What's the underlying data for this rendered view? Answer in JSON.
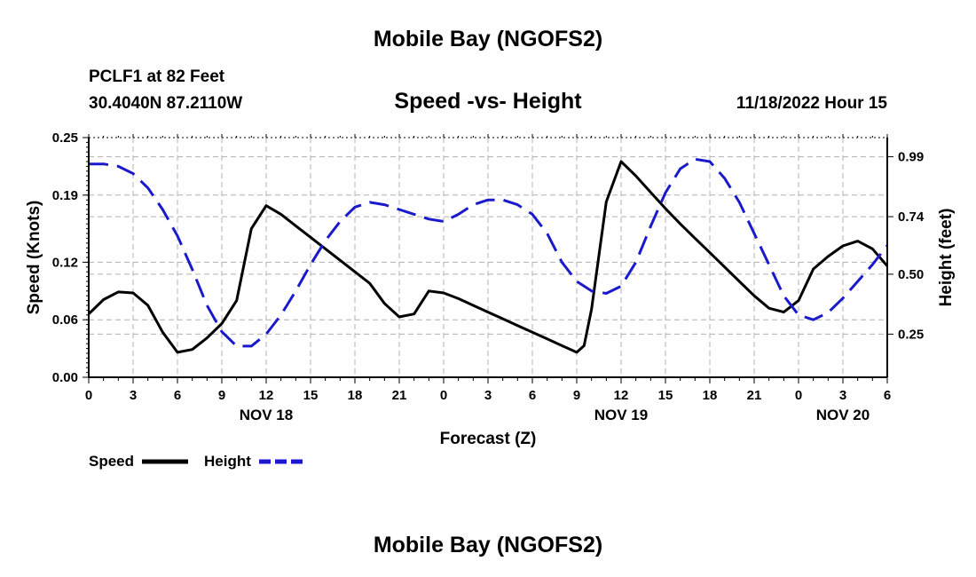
{
  "header": {
    "title": "Mobile Bay (NGOFS2)",
    "station": "PCLF1 at 82 Feet",
    "coordinates": "30.4040N  87.2110W",
    "subtitle": "Speed -vs- Height",
    "datetime": "11/18/2022 Hour 15"
  },
  "footer": {
    "title": "Mobile Bay (NGOFS2)"
  },
  "legend": {
    "speed_label": "Speed",
    "height_label": "Height"
  },
  "colors": {
    "speed": "#000000",
    "height": "#1a1acc",
    "grid": "#b0b0b0"
  },
  "chart_data": {
    "type": "line",
    "title": "Speed -vs- Height",
    "xlabel": "Forecast (Z)",
    "ylabel": "Speed (Knots)",
    "y2label": "Height (feet)",
    "grid": true,
    "legend_position": "bottom-left",
    "ylim": [
      0,
      0.25
    ],
    "y2lim": [
      0.07,
      1.07
    ],
    "x_unit": "hours",
    "xlim": [
      0,
      54
    ],
    "x_ticks": [
      0,
      3,
      6,
      9,
      12,
      15,
      18,
      21,
      24,
      27,
      30,
      33,
      36,
      39,
      42,
      45,
      48,
      51,
      54
    ],
    "x_tick_labels": [
      "0",
      "3",
      "6",
      "9",
      "12",
      "15",
      "18",
      "21",
      "0",
      "3",
      "6",
      "9",
      "12",
      "15",
      "18",
      "21",
      "0",
      "3",
      "6"
    ],
    "day_labels": [
      {
        "x": 12,
        "label": "NOV 18"
      },
      {
        "x": 36,
        "label": "NOV 19"
      },
      {
        "x": 51,
        "label": "NOV 20"
      }
    ],
    "y_ticks": [
      0,
      0.06,
      0.12,
      0.19,
      0.25
    ],
    "y_tick_labels": [
      "0.00",
      "0.06",
      "0.12",
      "0.19",
      "0.25"
    ],
    "y2_ticks": [
      0.25,
      0.5,
      0.74,
      0.99
    ],
    "y2_tick_labels": [
      "0.25",
      "0.50",
      "0.74",
      "0.99"
    ],
    "series": [
      {
        "name": "Speed",
        "axis": "left",
        "style": "solid",
        "x": [
          0,
          1,
          2,
          3,
          4,
          5,
          6,
          7,
          8,
          9,
          10,
          11,
          12,
          13,
          14,
          15,
          16,
          17,
          18,
          19,
          20,
          21,
          22,
          23,
          24,
          25,
          26,
          27,
          28,
          29,
          30,
          31,
          32,
          33,
          33.5,
          34,
          35,
          36,
          37,
          38,
          39,
          40,
          41,
          42,
          43,
          44,
          45,
          46,
          47,
          48,
          49,
          50,
          51,
          52,
          53,
          54
        ],
        "values": [
          0.066,
          0.081,
          0.089,
          0.088,
          0.075,
          0.047,
          0.026,
          0.029,
          0.041,
          0.056,
          0.08,
          0.155,
          0.179,
          0.17,
          0.158,
          0.146,
          0.134,
          0.122,
          0.11,
          0.098,
          0.077,
          0.063,
          0.066,
          0.09,
          0.088,
          0.082,
          0.075,
          0.068,
          0.061,
          0.054,
          0.047,
          0.04,
          0.033,
          0.026,
          0.033,
          0.071,
          0.183,
          0.225,
          0.21,
          0.193,
          0.176,
          0.16,
          0.145,
          0.13,
          0.115,
          0.1,
          0.085,
          0.072,
          0.068,
          0.08,
          0.113,
          0.126,
          0.137,
          0.142,
          0.134,
          0.116
        ]
      },
      {
        "name": "Height",
        "axis": "right",
        "style": "dashed",
        "x": [
          0,
          1,
          2,
          3,
          4,
          5,
          6,
          7,
          8,
          9,
          10,
          11,
          12,
          13,
          14,
          15,
          16,
          17,
          18,
          19,
          20,
          21,
          22,
          23,
          24,
          25,
          26,
          27,
          28,
          29,
          30,
          31,
          32,
          33,
          34,
          35,
          36,
          37,
          38,
          39,
          40,
          41,
          42,
          43,
          44,
          45,
          46,
          47,
          48,
          49,
          50,
          51,
          52,
          53,
          54
        ],
        "values": [
          0.96,
          0.96,
          0.95,
          0.92,
          0.86,
          0.77,
          0.66,
          0.52,
          0.37,
          0.26,
          0.2,
          0.2,
          0.25,
          0.33,
          0.43,
          0.54,
          0.64,
          0.72,
          0.78,
          0.8,
          0.79,
          0.77,
          0.75,
          0.73,
          0.72,
          0.75,
          0.79,
          0.81,
          0.81,
          0.79,
          0.75,
          0.67,
          0.55,
          0.47,
          0.43,
          0.42,
          0.45,
          0.55,
          0.7,
          0.84,
          0.94,
          0.98,
          0.97,
          0.9,
          0.8,
          0.67,
          0.54,
          0.41,
          0.33,
          0.31,
          0.34,
          0.4,
          0.47,
          0.54,
          0.62
        ]
      }
    ]
  }
}
